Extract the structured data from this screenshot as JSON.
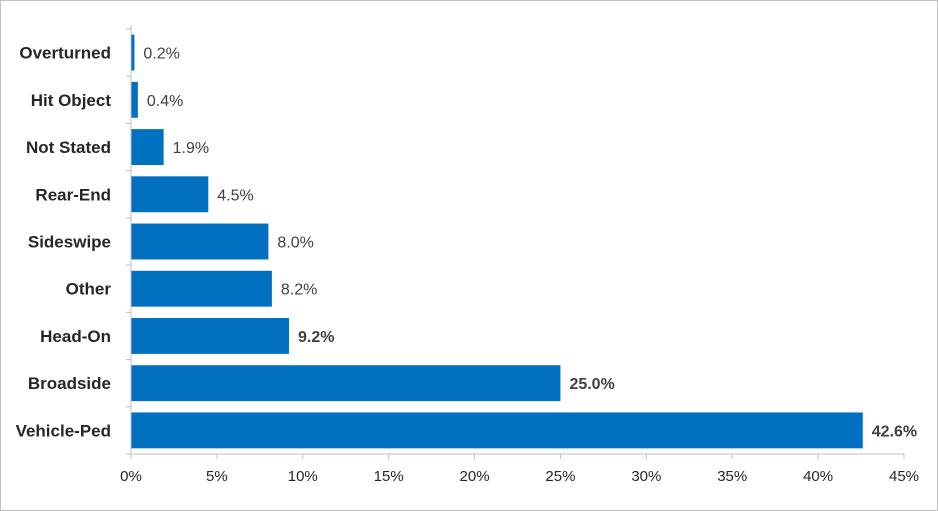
{
  "chart_data": {
    "type": "bar",
    "orientation": "horizontal",
    "categories": [
      "Overturned",
      "Hit Object",
      "Not Stated",
      "Rear-End",
      "Sideswipe",
      "Other",
      "Head-On",
      "Broadside",
      "Vehicle-Ped"
    ],
    "values": [
      0.2,
      0.4,
      1.9,
      4.5,
      8.0,
      8.2,
      9.2,
      25.0,
      42.6
    ],
    "data_labels": [
      "0.2%",
      "0.4%",
      "1.9%",
      "4.5%",
      "8.0%",
      "8.2%",
      "9.2%",
      "25.0%",
      "42.6%"
    ],
    "bold_labels": [
      false,
      false,
      false,
      false,
      false,
      false,
      true,
      true,
      true
    ],
    "title": "",
    "xlabel": "",
    "ylabel": "",
    "xlim": [
      0,
      45
    ],
    "xticks": [
      0,
      5,
      10,
      15,
      20,
      25,
      30,
      35,
      40,
      45
    ],
    "xtick_labels": [
      "0%",
      "5%",
      "10%",
      "15%",
      "20%",
      "25%",
      "30%",
      "35%",
      "40%",
      "45%"
    ],
    "grid": false,
    "legend": "none",
    "colors": {
      "bar": "#0070C0",
      "axis": "#bfbfbf",
      "text": "#262626"
    }
  }
}
